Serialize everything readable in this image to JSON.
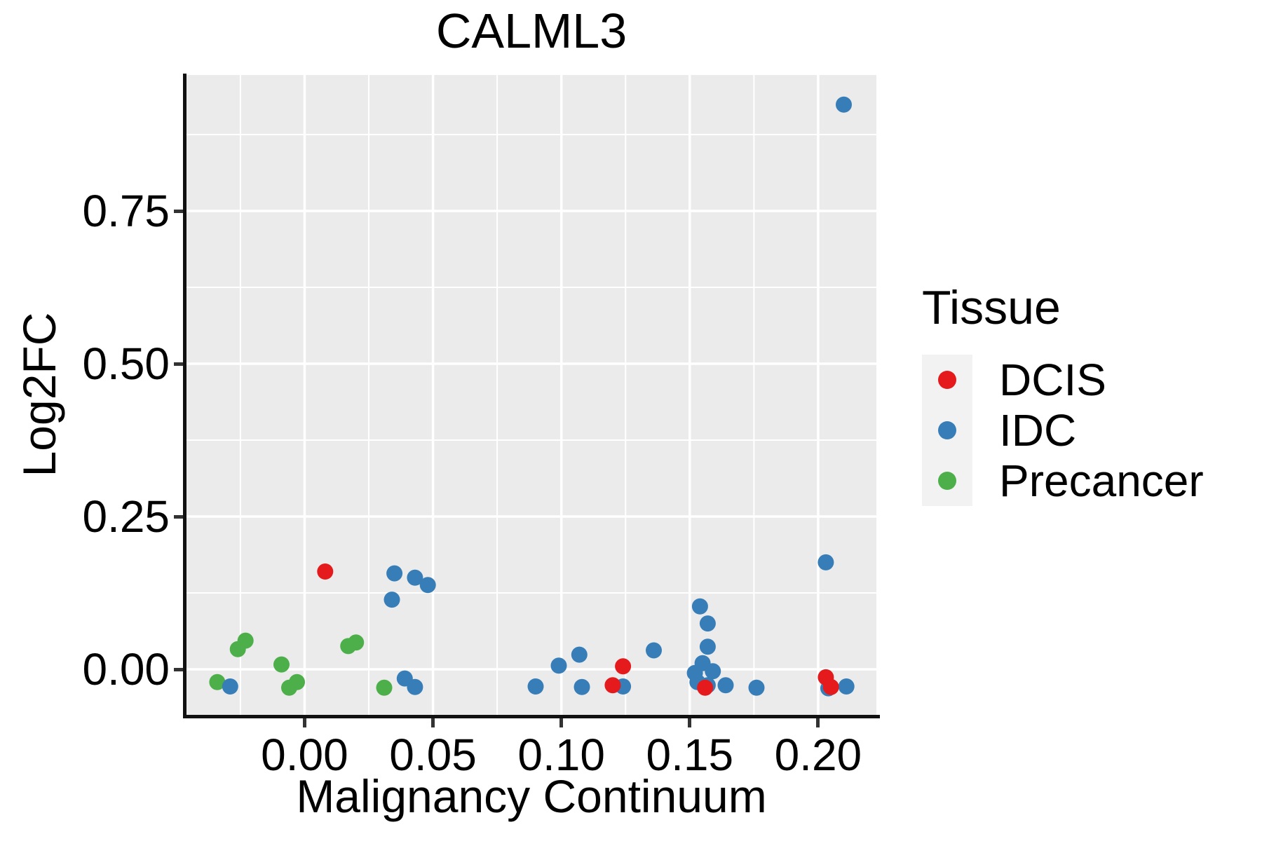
{
  "chart": {
    "title": "CALML3",
    "xlabel": "Malignancy Continuum",
    "ylabel": "Log2FC"
  },
  "legend": {
    "title": "Tissue",
    "items": [
      {
        "label": "DCIS",
        "color": "#E41A1C"
      },
      {
        "label": "IDC",
        "color": "#377EB8"
      },
      {
        "label": "Precancer",
        "color": "#4DAF4A"
      }
    ]
  },
  "chart_data": {
    "type": "scatter",
    "title": "CALML3",
    "xlabel": "Malignancy Continuum",
    "ylabel": "Log2FC",
    "xlim": [
      -0.046,
      0.2227
    ],
    "ylim": [
      -0.0745,
      0.9725
    ],
    "grid": true,
    "legend_position": "right",
    "panel_background": "#EBEBEB",
    "grid_color": "#FFFFFF",
    "point_radius_px": 11.5,
    "x_ticks": {
      "values": [
        0.0,
        0.05,
        0.1,
        0.15,
        0.2
      ],
      "labels": [
        "0.00",
        "0.05",
        "0.10",
        "0.15",
        "0.20"
      ],
      "minor": [
        -0.025,
        0.025,
        0.075,
        0.125,
        0.175
      ]
    },
    "y_ticks": {
      "values": [
        0.0,
        0.25,
        0.5,
        0.75
      ],
      "labels": [
        "0.00",
        "0.25",
        "0.50",
        "0.75"
      ],
      "minor": [
        0.125,
        0.375,
        0.625,
        0.875
      ]
    },
    "series": [
      {
        "name": "Precancer",
        "color": "#4DAF4A",
        "points": [
          [
            -0.034,
            -0.021
          ],
          [
            -0.026,
            0.033
          ],
          [
            -0.023,
            0.047
          ],
          [
            -0.009,
            0.008
          ],
          [
            -0.006,
            -0.03
          ],
          [
            -0.003,
            -0.021
          ],
          [
            0.017,
            0.038
          ],
          [
            0.02,
            0.044
          ],
          [
            0.031,
            -0.03
          ]
        ]
      },
      {
        "name": "IDC",
        "color": "#377EB8",
        "points": [
          [
            -0.029,
            -0.028
          ],
          [
            0.034,
            0.114
          ],
          [
            0.035,
            0.157
          ],
          [
            0.043,
            0.15
          ],
          [
            0.048,
            0.138
          ],
          [
            0.039,
            -0.015
          ],
          [
            0.043,
            -0.029
          ],
          [
            0.09,
            -0.028
          ],
          [
            0.099,
            0.006
          ],
          [
            0.107,
            0.024
          ],
          [
            0.108,
            -0.029
          ],
          [
            0.124,
            -0.028
          ],
          [
            0.136,
            0.031
          ],
          [
            0.154,
            0.103
          ],
          [
            0.157,
            0.075
          ],
          [
            0.157,
            0.037
          ],
          [
            0.155,
            0.01
          ],
          [
            0.152,
            -0.006
          ],
          [
            0.159,
            -0.003
          ],
          [
            0.153,
            -0.021
          ],
          [
            0.157,
            -0.026
          ],
          [
            0.164,
            -0.026
          ],
          [
            0.176,
            -0.03
          ],
          [
            0.203,
            0.175
          ],
          [
            0.204,
            -0.031
          ],
          [
            0.211,
            -0.028
          ],
          [
            0.21,
            0.924
          ]
        ]
      },
      {
        "name": "DCIS",
        "color": "#E41A1C",
        "points": [
          [
            0.008,
            0.16
          ],
          [
            0.12,
            -0.026
          ],
          [
            0.124,
            0.005
          ],
          [
            0.156,
            -0.03
          ],
          [
            0.203,
            -0.013
          ],
          [
            0.205,
            -0.029
          ]
        ]
      }
    ]
  }
}
